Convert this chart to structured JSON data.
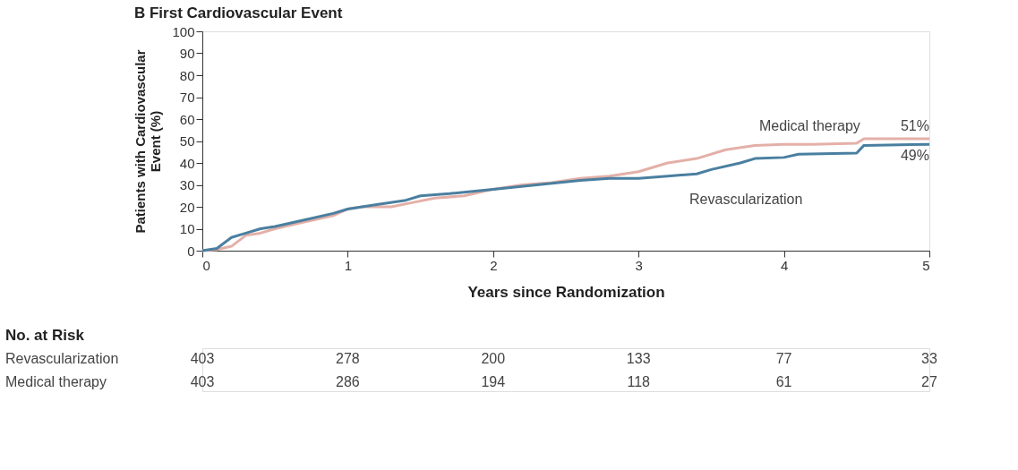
{
  "chart_data": {
    "type": "line",
    "title": "B  First Cardiovascular Event",
    "xlabel": "Years since Randomization",
    "ylabel": "Patients with Cardiovascular Event (%)",
    "xlim": [
      0,
      5
    ],
    "xticks": [
      0,
      1,
      2,
      3,
      4,
      5
    ],
    "ylim": [
      0,
      100
    ],
    "yticks": [
      0,
      10,
      20,
      30,
      40,
      50,
      60,
      70,
      80,
      90,
      100
    ],
    "grid": false,
    "legend": false,
    "marker": "none",
    "line_style": "solid",
    "series": [
      {
        "name": "Medical therapy",
        "color": "#e3b0a8",
        "x": [
          0,
          0.1,
          0.2,
          0.3,
          0.4,
          0.5,
          0.7,
          0.9,
          1.0,
          1.1,
          1.3,
          1.45,
          1.6,
          1.8,
          2.0,
          2.2,
          2.4,
          2.6,
          2.8,
          3.0,
          3.2,
          3.4,
          3.6,
          3.8,
          4.0,
          4.2,
          4.5,
          4.55,
          5.0
        ],
        "values": [
          0,
          0.5,
          2,
          7,
          8,
          10,
          13,
          16,
          19,
          20,
          20,
          22,
          24,
          25,
          28,
          30,
          31,
          33,
          34,
          36,
          40,
          42,
          46,
          48,
          48.5,
          48.5,
          49,
          51,
          51
        ]
      },
      {
        "name": "Revascularization",
        "color": "#4a7fa0",
        "x": [
          0,
          0.1,
          0.2,
          0.3,
          0.4,
          0.5,
          0.7,
          0.9,
          1.0,
          1.2,
          1.4,
          1.5,
          1.7,
          2.0,
          2.3,
          2.6,
          2.8,
          3.0,
          3.2,
          3.4,
          3.5,
          3.7,
          3.8,
          4.0,
          4.1,
          4.5,
          4.55,
          5.0
        ],
        "values": [
          0,
          1,
          6,
          8,
          10,
          11,
          14,
          17,
          19,
          21,
          23,
          25,
          26,
          28,
          30,
          32,
          33,
          33,
          34,
          35,
          37,
          40,
          42,
          42.5,
          44,
          44.5,
          48,
          48.5
        ]
      }
    ],
    "annotations": [
      {
        "text": "51%",
        "x": 5,
        "y": 51
      },
      {
        "text": "49%",
        "x": 5,
        "y": 49
      },
      "No. at Risk",
      "Revascularization",
      "403",
      "278",
      "200",
      "133",
      "77",
      "33",
      "Medical therapy",
      "403",
      "286",
      "194",
      "118",
      "61",
      "27"
    ]
  }
}
